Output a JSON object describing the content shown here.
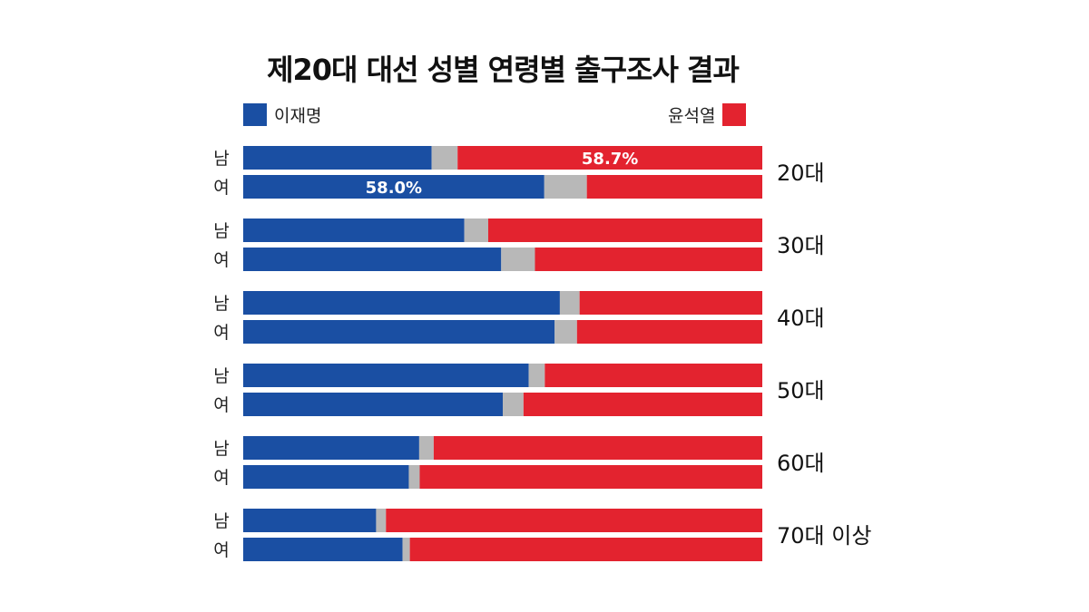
{
  "colors": {
    "lee": "#1a4fa3",
    "other": "#b8b8b8",
    "yoon": "#e3232f"
  },
  "chart_data": {
    "type": "bar",
    "stacked": true,
    "orientation": "horizontal",
    "title": "제20대 대선 성별 연령별 출구조사 결과",
    "legend": {
      "left": "이재명",
      "right": "윤석열"
    },
    "groups": [
      {
        "label": "20대",
        "rows": [
          {
            "gender": "남",
            "lee": 36.3,
            "other": 5.0,
            "yoon": 58.7,
            "label": "58.7%",
            "label_series": "yoon"
          },
          {
            "gender": "여",
            "lee": 58.0,
            "other": 8.2,
            "yoon": 33.8,
            "label": "58.0%",
            "label_series": "lee"
          }
        ]
      },
      {
        "label": "30대",
        "rows": [
          {
            "gender": "남",
            "lee": 42.6,
            "other": 4.6,
            "yoon": 52.8
          },
          {
            "gender": "여",
            "lee": 49.7,
            "other": 6.5,
            "yoon": 43.8
          }
        ]
      },
      {
        "label": "40대",
        "rows": [
          {
            "gender": "남",
            "lee": 61.0,
            "other": 3.8,
            "yoon": 35.2
          },
          {
            "gender": "여",
            "lee": 60.0,
            "other": 4.3,
            "yoon": 35.7
          }
        ]
      },
      {
        "label": "50대",
        "rows": [
          {
            "gender": "남",
            "lee": 55.0,
            "other": 3.1,
            "yoon": 41.9
          },
          {
            "gender": "여",
            "lee": 50.0,
            "other": 4.0,
            "yoon": 46.0
          }
        ]
      },
      {
        "label": "60대",
        "rows": [
          {
            "gender": "남",
            "lee": 33.9,
            "other": 2.8,
            "yoon": 63.3
          },
          {
            "gender": "여",
            "lee": 31.9,
            "other": 2.1,
            "yoon": 66.0
          }
        ]
      },
      {
        "label": "70대 이상",
        "rows": [
          {
            "gender": "남",
            "lee": 25.6,
            "other": 1.9,
            "yoon": 72.5
          },
          {
            "gender": "여",
            "lee": 30.7,
            "other": 1.4,
            "yoon": 67.9
          }
        ]
      }
    ],
    "xlim": [
      0,
      100
    ],
    "grid": false
  }
}
